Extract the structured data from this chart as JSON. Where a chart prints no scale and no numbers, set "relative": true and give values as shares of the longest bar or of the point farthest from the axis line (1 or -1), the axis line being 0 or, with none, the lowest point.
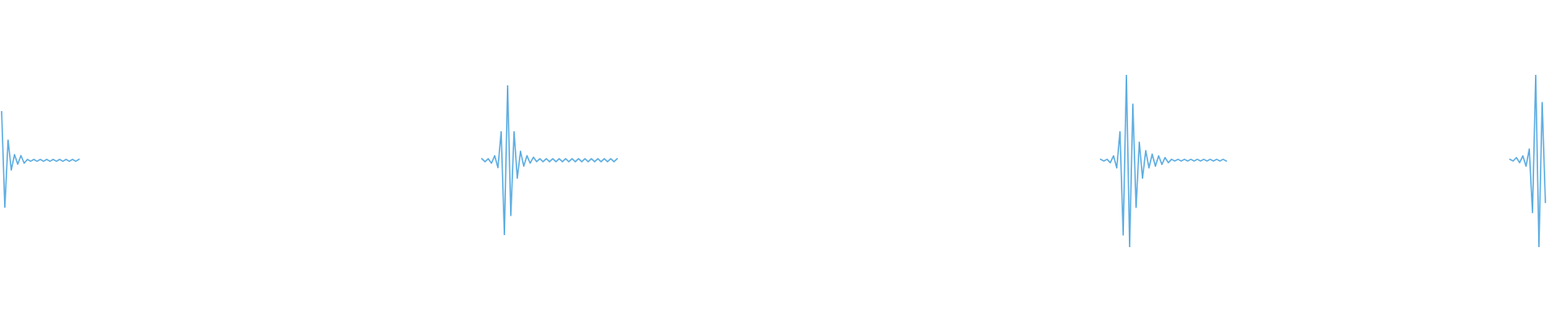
{
  "chart_data": [
    {
      "type": "line",
      "relative": true,
      "line_style": "solid",
      "categories": [
        null,
        null,
        null,
        null,
        null,
        null,
        null,
        null,
        null,
        null,
        null,
        null,
        null,
        null,
        null,
        null,
        null,
        null,
        null,
        null,
        null,
        null,
        null,
        null,
        null
      ],
      "series": [
        {
          "color": "#5dade2",
          "values": [
            1,
            0,
            0.7,
            0.39,
            0.55,
            0.45,
            0.54,
            0.46,
            0.5,
            0.48,
            0.5,
            0.48,
            0.5,
            0.48,
            0.5,
            0.48,
            0.5,
            0.48,
            0.5,
            0.48,
            0.5,
            0.48,
            0.5,
            0.48,
            0.5
          ]
        }
      ]
    },
    {
      "type": "line",
      "relative": true,
      "line_style": "solid",
      "categories": [
        null,
        null,
        null,
        null,
        null,
        null,
        null,
        null,
        null,
        null,
        null,
        null,
        null,
        null,
        null,
        null,
        null,
        null,
        null,
        null,
        null,
        null,
        null,
        null,
        null,
        null,
        null,
        null,
        null,
        null,
        null,
        null,
        null,
        null,
        null,
        null,
        null,
        null,
        null,
        null,
        null,
        null,
        null
      ],
      "series": [
        {
          "color": "#5dade2",
          "values": [
            0.51,
            0.49,
            0.51,
            0.48,
            0.53,
            0.45,
            0.69,
            0,
            1,
            0.13,
            0.69,
            0.38,
            0.56,
            0.46,
            0.53,
            0.48,
            0.52,
            0.49,
            0.51,
            0.49,
            0.51,
            0.49,
            0.51,
            0.49,
            0.51,
            0.49,
            0.51,
            0.49,
            0.51,
            0.49,
            0.51,
            0.49,
            0.51,
            0.49,
            0.51,
            0.49,
            0.51,
            0.49,
            0.51,
            0.49,
            0.51,
            0.49,
            0.51
          ]
        }
      ]
    },
    {
      "type": "line",
      "relative": true,
      "line_style": "solid",
      "categories": [
        null,
        null,
        null,
        null,
        null,
        null,
        null,
        null,
        null,
        null,
        null,
        null,
        null,
        null,
        null,
        null,
        null,
        null,
        null,
        null,
        null,
        null,
        null,
        null,
        null,
        null,
        null,
        null,
        null,
        null,
        null,
        null,
        null,
        null,
        null,
        null,
        null,
        null,
        null,
        null
      ],
      "series": [
        {
          "color": "#5dade2",
          "values": [
            0.51,
            0.5,
            0.51,
            0.49,
            0.53,
            0.46,
            0.67,
            0.07,
            1,
            0,
            0.83,
            0.23,
            0.61,
            0.4,
            0.56,
            0.46,
            0.54,
            0.47,
            0.53,
            0.48,
            0.52,
            0.49,
            0.51,
            0.5,
            0.51,
            0.5,
            0.51,
            0.5,
            0.51,
            0.5,
            0.51,
            0.5,
            0.51,
            0.5,
            0.51,
            0.5,
            0.51,
            0.5,
            0.51,
            0.5
          ]
        }
      ]
    },
    {
      "type": "line",
      "relative": true,
      "line_style": "solid",
      "categories": [
        null,
        null,
        null,
        null,
        null,
        null,
        null,
        null,
        null,
        null,
        null,
        null
      ],
      "series": [
        {
          "color": "#5dade2",
          "values": [
            0.51,
            0.5,
            0.52,
            0.49,
            0.53,
            0.47,
            0.57,
            0.2,
            1,
            0,
            0.84,
            0.26
          ]
        }
      ]
    }
  ]
}
